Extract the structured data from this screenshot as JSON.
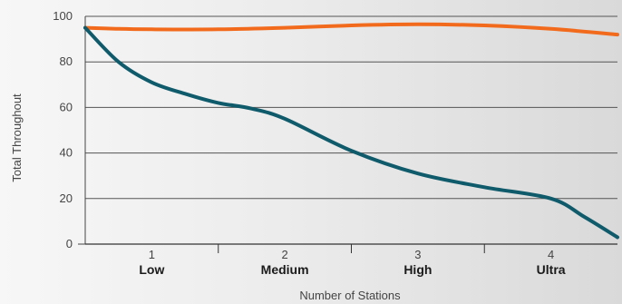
{
  "chart_data": {
    "type": "line",
    "xlabel": "Number of Stations",
    "ylabel": "Total Throughout",
    "ylim": [
      0,
      100
    ],
    "xlim": [
      0.5,
      4.5
    ],
    "y_ticks": [
      0,
      20,
      40,
      60,
      80,
      100
    ],
    "grid": "horizontal",
    "categories": [
      {
        "number": "1",
        "level": "Low"
      },
      {
        "number": "2",
        "level": "Medium"
      },
      {
        "number": "3",
        "level": "High"
      },
      {
        "number": "4",
        "level": "Ultra"
      }
    ],
    "series": [
      {
        "color": "#f26b1d",
        "x": [
          0.5,
          0.75,
          1.0,
          1.5,
          2.0,
          2.5,
          3.0,
          3.5,
          4.0,
          4.5
        ],
        "values": [
          95,
          94.5,
          94.3,
          94.3,
          95,
          96,
          96.5,
          96,
          94.5,
          92
        ]
      },
      {
        "color": "#0f5a6b",
        "x": [
          0.5,
          0.75,
          1.0,
          1.25,
          1.5,
          1.75,
          2.0,
          2.5,
          3.0,
          3.5,
          4.0,
          4.25,
          4.5
        ],
        "values": [
          95,
          80,
          71,
          66,
          62,
          59.5,
          55,
          41,
          31,
          25,
          20,
          12,
          3
        ]
      }
    ]
  }
}
